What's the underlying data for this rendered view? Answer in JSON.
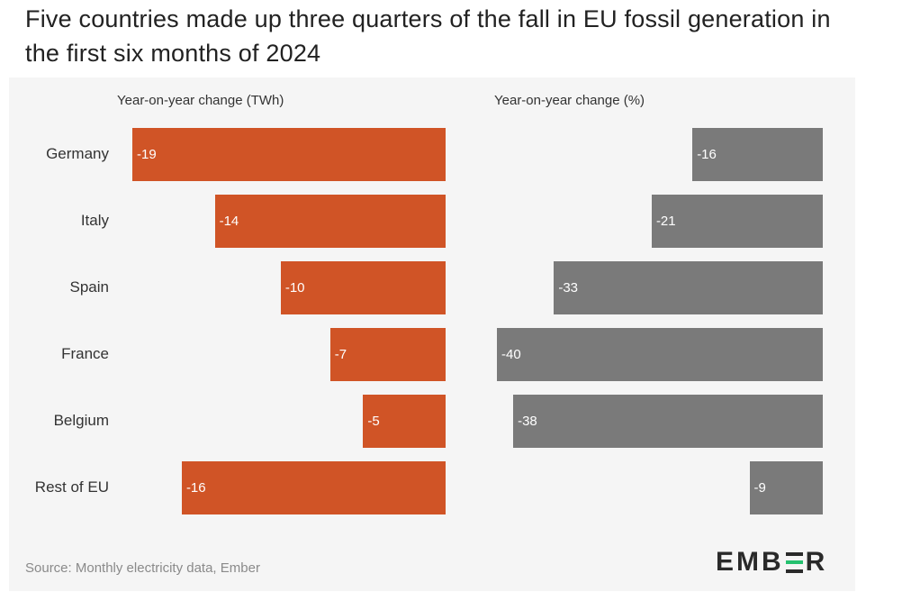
{
  "title": "Five countries made up three quarters of the fall in EU fossil generation in the first six months of 2024",
  "source": "Source: Monthly electricity data, Ember",
  "logo": {
    "before": "EMB",
    "after": "R"
  },
  "colors": {
    "twh_bar": "#d05426",
    "pct_bar": "#7a7a7a",
    "logo_accent": "#25c16f"
  },
  "chart_data": [
    {
      "type": "bar",
      "orientation": "horizontal",
      "title": "Year-on-year change (TWh)",
      "categories": [
        "Germany",
        "Italy",
        "Spain",
        "France",
        "Belgium",
        "Rest of EU"
      ],
      "values": [
        -19,
        -14,
        -10,
        -7,
        -5,
        -16
      ],
      "xlim": [
        -19,
        0
      ]
    },
    {
      "type": "bar",
      "orientation": "horizontal",
      "title": "Year-on-year change (%)",
      "categories": [
        "Germany",
        "Italy",
        "Spain",
        "France",
        "Belgium",
        "Rest of EU"
      ],
      "values": [
        -16,
        -21,
        -33,
        -40,
        -38,
        -9
      ],
      "xlim": [
        -40,
        0
      ]
    }
  ]
}
